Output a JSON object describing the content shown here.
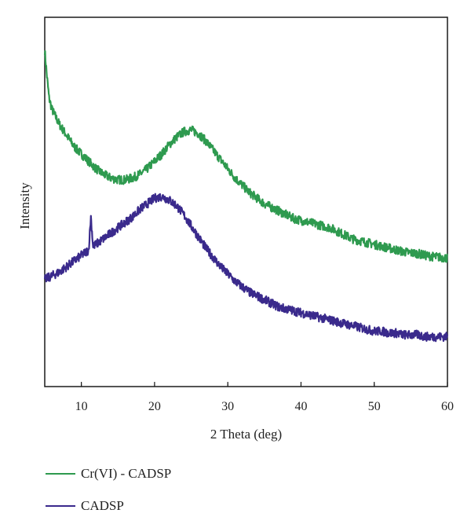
{
  "chart_data": {
    "type": "line",
    "title": "",
    "xlabel": "2 Theta (deg)",
    "ylabel": "Intensity",
    "xlim": [
      5,
      60
    ],
    "ylim": [
      0,
      100
    ],
    "xticks": [
      10,
      20,
      30,
      40,
      50,
      60
    ],
    "y_tick_labels": false,
    "grid": false,
    "legend_position": "bottom-left, below plot",
    "series": [
      {
        "name": "Cr(VI) - CADSP",
        "color": "#2e9a4f",
        "x": [
          5,
          5.3,
          5.6,
          6,
          7,
          8,
          9,
          10,
          11,
          12,
          13,
          14,
          15,
          16,
          17,
          18,
          19,
          20,
          21,
          22,
          23,
          24,
          25,
          26,
          27,
          28,
          29,
          30,
          31,
          32,
          33,
          34,
          35,
          36,
          37,
          38,
          39,
          40,
          41,
          42,
          43,
          44,
          45,
          46,
          47,
          48,
          49,
          50,
          51,
          52,
          53,
          54,
          55,
          56,
          57,
          58,
          59,
          60
        ],
        "y": [
          91,
          84,
          78,
          75,
          71,
          68,
          65,
          63,
          61,
          59,
          57.5,
          56.5,
          56,
          56,
          56.5,
          57.5,
          59,
          61,
          63,
          65.5,
          67.5,
          69,
          69.5,
          68.5,
          66.5,
          64,
          61.5,
          59,
          56.5,
          54.5,
          52.5,
          51,
          49.5,
          48.5,
          47.5,
          46.5,
          45.5,
          45,
          44.5,
          44,
          43.5,
          43,
          42,
          41,
          40,
          39.5,
          39,
          38.5,
          38,
          37.5,
          37,
          36.5,
          36.2,
          36,
          35.5,
          35.2,
          35,
          34.8
        ]
      },
      {
        "name": "CADSP",
        "color": "#3a2a8c",
        "x": [
          5,
          6,
          7,
          8,
          9,
          10,
          11,
          11.3,
          11.6,
          12,
          13,
          14,
          15,
          16,
          17,
          18,
          19,
          20,
          21,
          22,
          23,
          24,
          25,
          26,
          27,
          28,
          29,
          30,
          31,
          32,
          33,
          34,
          35,
          36,
          37,
          38,
          39,
          40,
          41,
          42,
          43,
          44,
          45,
          46,
          47,
          48,
          49,
          50,
          51,
          52,
          53,
          54,
          55,
          56,
          57,
          58,
          59,
          60
        ],
        "y": [
          29,
          30,
          31,
          32.5,
          34,
          35.5,
          37,
          46,
          38,
          38.5,
          40,
          41.5,
          43,
          44.5,
          46,
          48,
          49.5,
          51,
          51.5,
          50.5,
          49,
          46.5,
          43.5,
          40.5,
          37.5,
          35,
          32.5,
          30.5,
          28.5,
          27,
          25.5,
          24.5,
          23.5,
          22.5,
          21.5,
          21,
          20.5,
          20,
          19.5,
          19,
          18.5,
          18,
          17.5,
          17,
          16.5,
          16,
          15.5,
          15,
          15,
          14.5,
          14.5,
          14,
          14,
          14,
          13.5,
          13.5,
          13.5,
          13.5
        ]
      }
    ]
  }
}
